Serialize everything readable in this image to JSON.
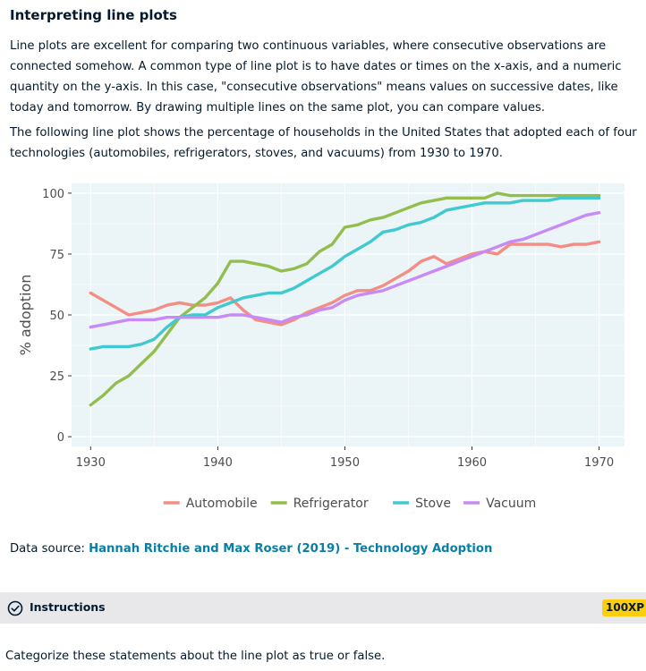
{
  "exercise": {
    "title": "Interpreting line plots",
    "paragraph1": "Line plots are excellent for comparing two continuous variables, where consecutive observations are connected somehow. A common type of line plot is to have dates or times on the x-axis, and a numeric quantity on the y-axis. In this case, \"consecutive observations\" means values on successive dates, like today and tomorrow. By drawing multiple lines on the same plot, you can compare values.",
    "paragraph2": "The following line plot shows the percentage of households in the United States that adopted each of four technologies (automobiles, refrigerators, stoves, and vacuums) from 1930 to 1970.",
    "source_prefix": "Data source: ",
    "source_link": "Hannah Ritchie and Max Roser (2019) - Technology Adoption",
    "instructions_label": "Instructions",
    "xp_badge": "100XP",
    "task_text": "Categorize these statements about the line plot as true or false."
  },
  "icons": {
    "instructions": "check-circle-icon"
  },
  "colors": {
    "panel_bg": "#ebf4f7",
    "grid": "#ffffff",
    "Automobile": "#f28e84",
    "Refrigerator": "#93be4e",
    "Stove": "#41c9cf",
    "Vacuum": "#c88af5",
    "link": "#0a7ea4",
    "badge": "#fcce0d",
    "instructions_bar": "#e8e8ea"
  },
  "chart_data": {
    "type": "line",
    "title": "",
    "xlabel": "",
    "ylabel": "% adoption",
    "xlim": [
      1928.5,
      1972.0
    ],
    "ylim": [
      -4,
      104
    ],
    "xticks": [
      1930,
      1940,
      1950,
      1960,
      1970
    ],
    "yticks": [
      0,
      25,
      50,
      75,
      100
    ],
    "grid": true,
    "legend_position": "bottom",
    "x": [
      1930,
      1931,
      1932,
      1933,
      1934,
      1935,
      1936,
      1937,
      1938,
      1939,
      1940,
      1941,
      1942,
      1943,
      1944,
      1945,
      1946,
      1947,
      1948,
      1949,
      1950,
      1951,
      1952,
      1953,
      1954,
      1955,
      1956,
      1957,
      1958,
      1959,
      1960,
      1961,
      1962,
      1963,
      1964,
      1965,
      1966,
      1967,
      1968,
      1969,
      1970
    ],
    "series": [
      {
        "name": "Automobile",
        "values": [
          59,
          56,
          53,
          50,
          51,
          52,
          54,
          55,
          54,
          54,
          55,
          57,
          52,
          48,
          47,
          46,
          48,
          51,
          53,
          55,
          58,
          60,
          60,
          62,
          65,
          68,
          72,
          74,
          71,
          73,
          75,
          76,
          75,
          79,
          79,
          79,
          79,
          78,
          79,
          79,
          80
        ]
      },
      {
        "name": "Refrigerator",
        "values": [
          13,
          17,
          22,
          25,
          30,
          35,
          42,
          49,
          53,
          57,
          63,
          72,
          72,
          71,
          70,
          68,
          69,
          71,
          76,
          79,
          86,
          87,
          89,
          90,
          92,
          94,
          96,
          97,
          98,
          98,
          98,
          98,
          100,
          99,
          99,
          99,
          99,
          99,
          99,
          99,
          99
        ]
      },
      {
        "name": "Stove",
        "values": [
          36,
          37,
          37,
          37,
          38,
          40,
          45,
          49,
          50,
          50,
          53,
          55,
          57,
          58,
          59,
          59,
          61,
          64,
          67,
          70,
          74,
          77,
          80,
          84,
          85,
          87,
          88,
          90,
          93,
          94,
          95,
          96,
          96,
          96,
          97,
          97,
          97,
          98,
          98,
          98,
          98
        ]
      },
      {
        "name": "Vacuum",
        "values": [
          45,
          46,
          47,
          48,
          48,
          48,
          49,
          49,
          49,
          49,
          49,
          50,
          50,
          49,
          48,
          47,
          49,
          50,
          52,
          53,
          56,
          58,
          59,
          60,
          62,
          64,
          66,
          68,
          70,
          72,
          74,
          76,
          78,
          80,
          81,
          83,
          85,
          87,
          89,
          91,
          92
        ]
      }
    ]
  }
}
